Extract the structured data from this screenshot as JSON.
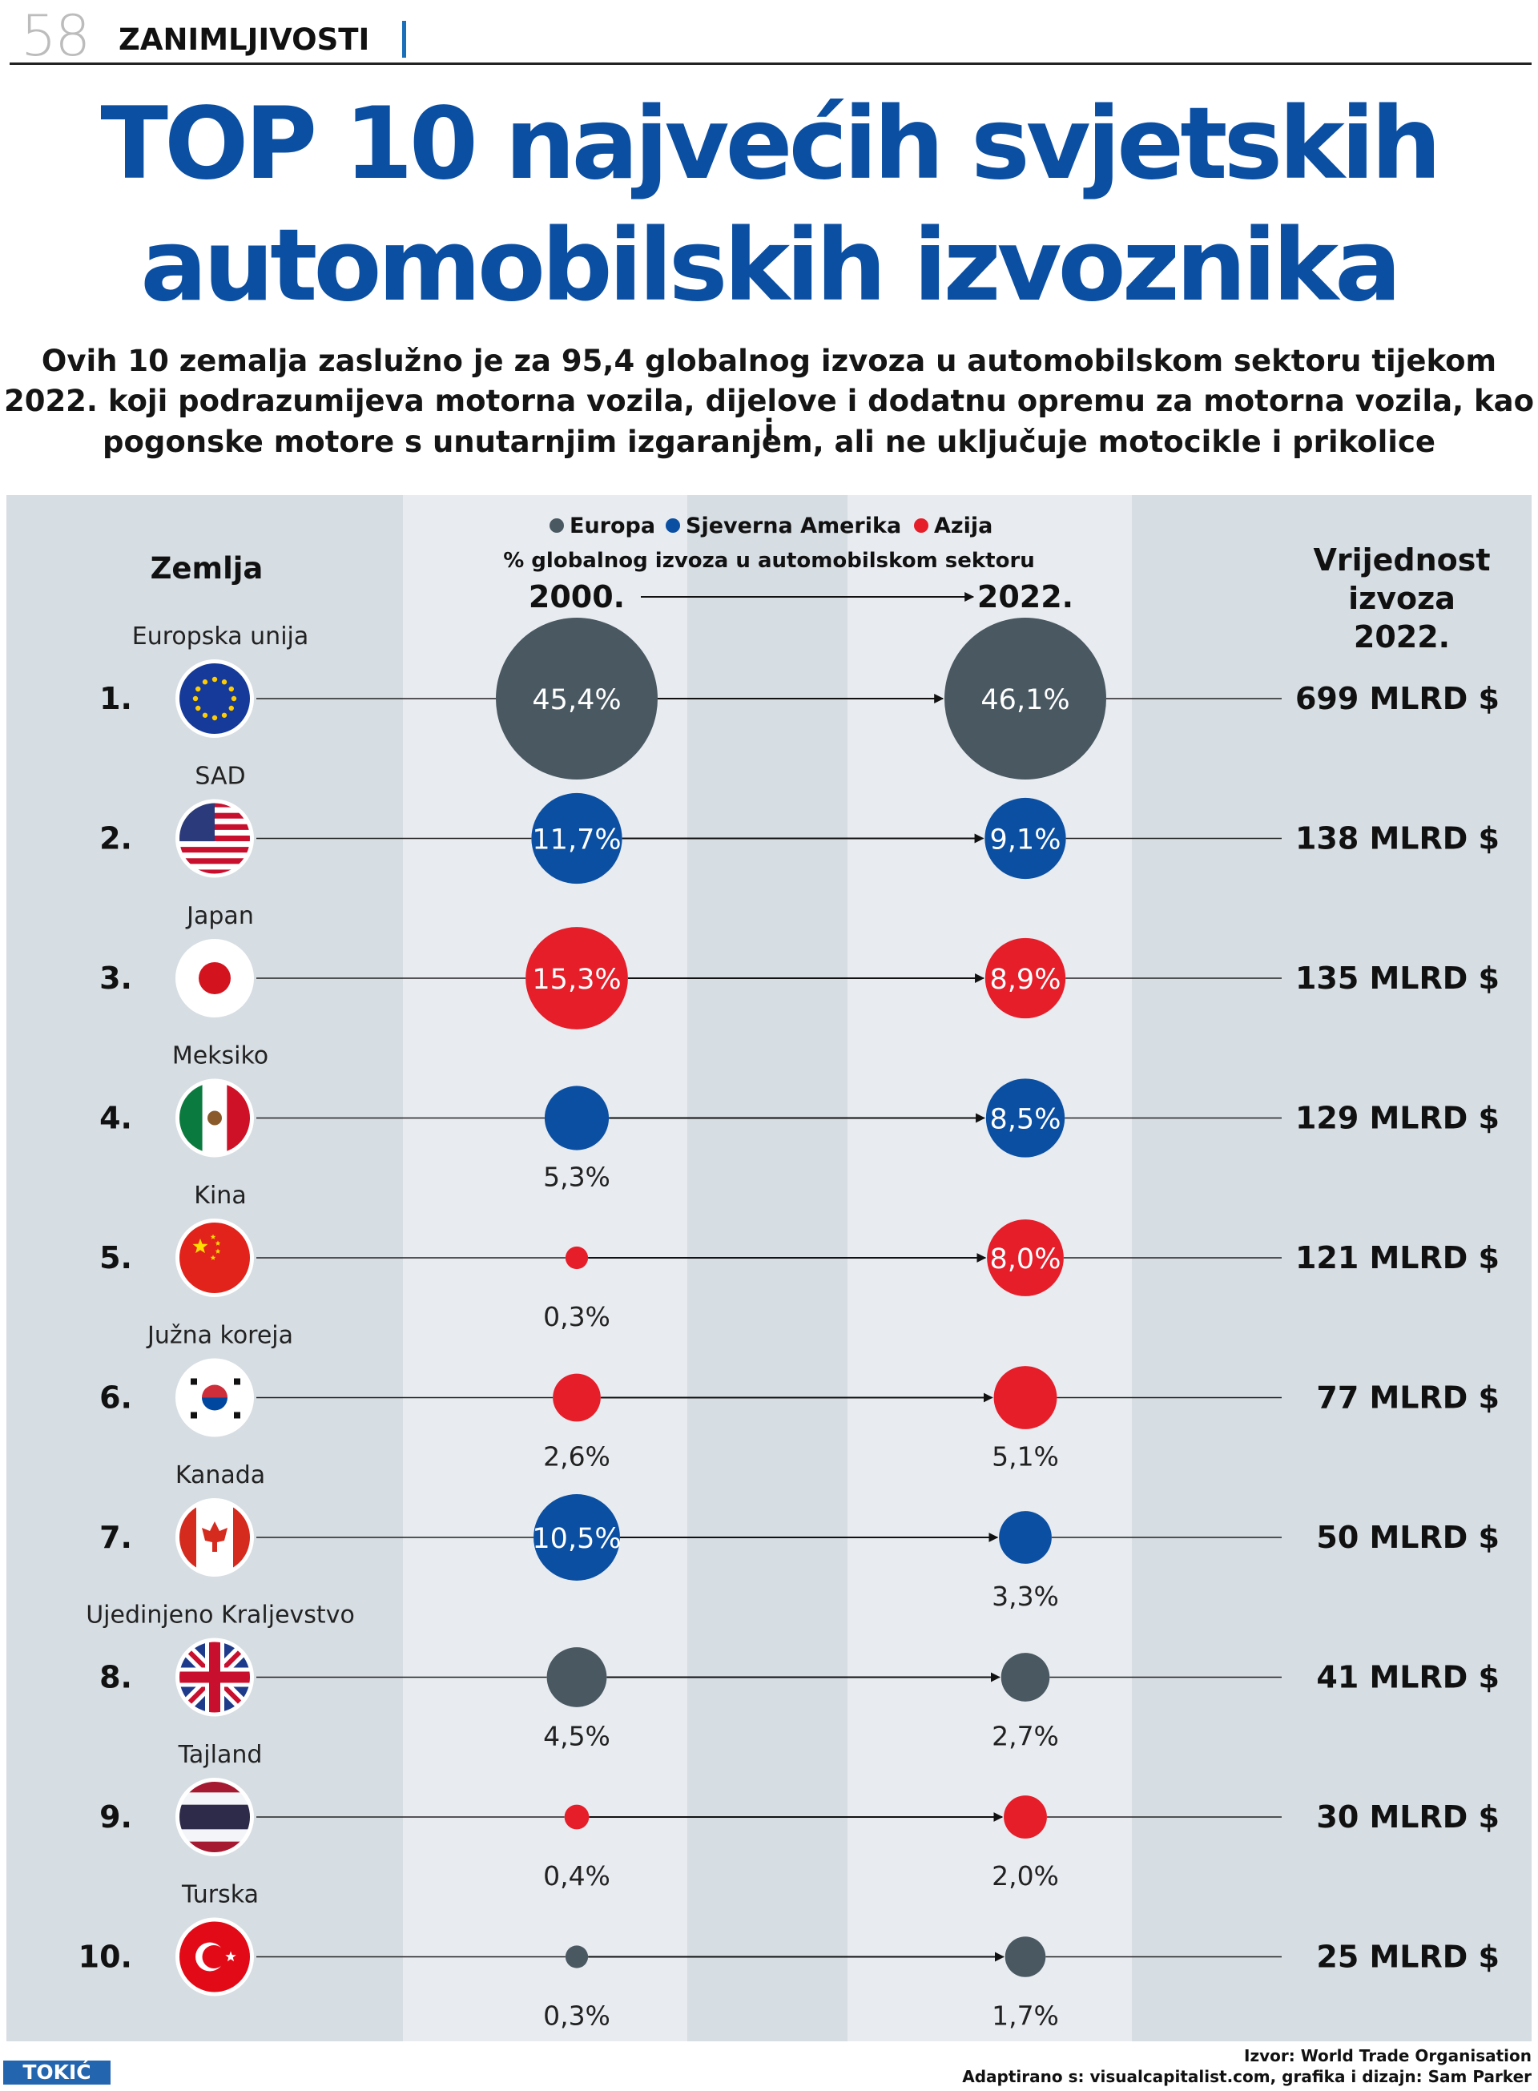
{
  "page": {
    "number": "58",
    "section": "ZANIMLJIVOSTI"
  },
  "title_line1": "TOP 10 najvećih svjetskih",
  "title_line2": "automobilskih izvoznika",
  "subtitle_lines": [
    "Ovih 10 zemalja zaslužno je za 95,4 globalnog izvoza u automobilskom sektoru tijekom",
    "2022. koji podrazumijeva motorna vozila, dijelove i dodatnu opremu za motorna vozila, kao i",
    "pogonske motore s unutarnjim izgaranjem, ali ne uključuje motocikle i prikolice"
  ],
  "colors": {
    "Europa": "#4a5862",
    "Sjeverna Amerika": "#0b4fa3",
    "Azija": "#e51e2a",
    "title": "#0b4fa3"
  },
  "chart_data": {
    "type": "scatter",
    "legend": [
      "Europa",
      "Sjeverna Amerika",
      "Azija"
    ],
    "legend_position": "top-center",
    "axis_caption": "% globalnog izvoza u automobilskom sektoru",
    "column_headers": {
      "country": "Zemlja",
      "year_from": "2000.",
      "year_to": "2022.",
      "value": [
        "Vrijednost",
        "izvoza",
        "2022."
      ]
    },
    "rows": [
      {
        "rank": "1.",
        "country": "Europska unija",
        "region": "Europa",
        "share_2000": 45.4,
        "share_2022": 46.1,
        "label_2000": "45,4%",
        "label_2022": "46,1%",
        "value_label": "699 MLRD $",
        "value_bn_usd": 699,
        "flag": "eu-flag-icon"
      },
      {
        "rank": "2.",
        "country": "SAD",
        "region": "Sjeverna Amerika",
        "share_2000": 11.7,
        "share_2022": 9.1,
        "label_2000": "11,7%",
        "label_2022": "9,1%",
        "value_label": "138 MLRD $",
        "value_bn_usd": 138,
        "flag": "usa-flag-icon"
      },
      {
        "rank": "3.",
        "country": "Japan",
        "region": "Azija",
        "share_2000": 15.3,
        "share_2022": 8.9,
        "label_2000": "15,3%",
        "label_2022": "8,9%",
        "value_label": "135 MLRD $",
        "value_bn_usd": 135,
        "flag": "japan-flag-icon"
      },
      {
        "rank": "4.",
        "country": "Meksiko",
        "region": "Sjeverna Amerika",
        "share_2000": 5.3,
        "share_2022": 8.5,
        "label_2000": "5,3%",
        "label_2022": "8,5%",
        "value_label": "129 MLRD $",
        "value_bn_usd": 129,
        "flag": "mexico-flag-icon"
      },
      {
        "rank": "5.",
        "country": "Kina",
        "region": "Azija",
        "share_2000": 0.3,
        "share_2022": 8.0,
        "label_2000": "0,3%",
        "label_2022": "8,0%",
        "value_label": "121 MLRD $",
        "value_bn_usd": 121,
        "flag": "china-flag-icon"
      },
      {
        "rank": "6.",
        "country": "Južna koreja",
        "region": "Azija",
        "share_2000": 2.6,
        "share_2022": 5.1,
        "label_2000": "2,6%",
        "label_2022": "5,1%",
        "value_label": "77 MLRD $",
        "value_bn_usd": 77,
        "flag": "south-korea-flag-icon"
      },
      {
        "rank": "7.",
        "country": "Kanada",
        "region": "Sjeverna Amerika",
        "share_2000": 10.5,
        "share_2022": 3.3,
        "label_2000": "10,5%",
        "label_2022": "3,3%",
        "value_label": "50 MLRD $",
        "value_bn_usd": 50,
        "flag": "canada-flag-icon"
      },
      {
        "rank": "8.",
        "country": "Ujedinjeno Kraljevstvo",
        "region": "Europa",
        "share_2000": 4.5,
        "share_2022": 2.7,
        "label_2000": "4,5%",
        "label_2022": "2,7%",
        "value_label": "41 MLRD $",
        "value_bn_usd": 41,
        "flag": "uk-flag-icon"
      },
      {
        "rank": "9.",
        "country": "Tajland",
        "region": "Azija",
        "share_2000": 0.4,
        "share_2022": 2.0,
        "label_2000": "0,4%",
        "label_2022": "2,0%",
        "value_label": "30 MLRD $",
        "value_bn_usd": 30,
        "flag": "thailand-flag-icon"
      },
      {
        "rank": "10.",
        "country": "Turska",
        "region": "Europa",
        "share_2000": 0.3,
        "share_2022": 1.7,
        "label_2000": "0,3%",
        "label_2022": "1,7%",
        "value_label": "25 MLRD $",
        "value_bn_usd": 25,
        "flag": "turkey-flag-icon"
      }
    ]
  },
  "footer": {
    "logo": "TOKIĆ",
    "source": "Izvor: World Trade Organisation",
    "adapted": "Adaptirano s: visualcapitalist.com, grafika i dizajn: Sam Parker"
  }
}
